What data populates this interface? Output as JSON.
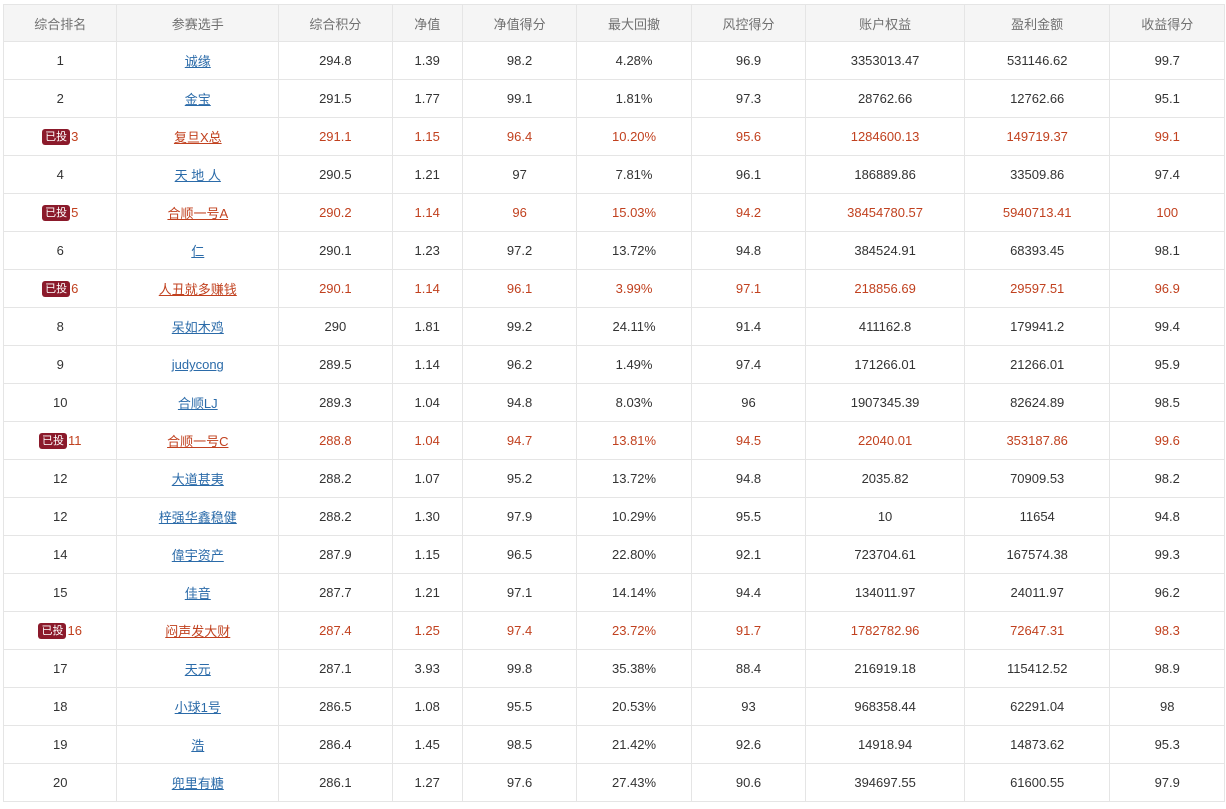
{
  "colors": {
    "header_bg": "#f5f5f5",
    "highlight_text": "#c1411f",
    "link": "#2b6ba9",
    "badge_bg": "#8b1a2b"
  },
  "table": {
    "headers": [
      "综合排名",
      "参赛选手",
      "综合积分",
      "净值",
      "净值得分",
      "最大回撤",
      "风控得分",
      "账户权益",
      "盈利金额",
      "收益得分"
    ],
    "rows": [
      {
        "rank": "1",
        "name": "诚缘",
        "score": "294.8",
        "nav": "1.39",
        "nav_score": "98.2",
        "drawdown": "4.28%",
        "risk_score": "96.9",
        "equity": "3353013.47",
        "profit": "531146.62",
        "return_score": "99.7",
        "badge": "",
        "highlight": false
      },
      {
        "rank": "2",
        "name": "金宝",
        "score": "291.5",
        "nav": "1.77",
        "nav_score": "99.1",
        "drawdown": "1.81%",
        "risk_score": "97.3",
        "equity": "28762.66",
        "profit": "12762.66",
        "return_score": "95.1",
        "badge": "",
        "highlight": false
      },
      {
        "rank": "3",
        "name": "复旦X总",
        "score": "291.1",
        "nav": "1.15",
        "nav_score": "96.4",
        "drawdown": "10.20%",
        "risk_score": "95.6",
        "equity": "1284600.13",
        "profit": "149719.37",
        "return_score": "99.1",
        "badge": "已投",
        "highlight": true
      },
      {
        "rank": "4",
        "name": "天 地 人",
        "score": "290.5",
        "nav": "1.21",
        "nav_score": "97",
        "drawdown": "7.81%",
        "risk_score": "96.1",
        "equity": "186889.86",
        "profit": "33509.86",
        "return_score": "97.4",
        "badge": "",
        "highlight": false
      },
      {
        "rank": "5",
        "name": "合顺一号A",
        "score": "290.2",
        "nav": "1.14",
        "nav_score": "96",
        "drawdown": "15.03%",
        "risk_score": "94.2",
        "equity": "38454780.57",
        "profit": "5940713.41",
        "return_score": "100",
        "badge": "已投",
        "highlight": true
      },
      {
        "rank": "6",
        "name": "仁",
        "score": "290.1",
        "nav": "1.23",
        "nav_score": "97.2",
        "drawdown": "13.72%",
        "risk_score": "94.8",
        "equity": "384524.91",
        "profit": "68393.45",
        "return_score": "98.1",
        "badge": "",
        "highlight": false
      },
      {
        "rank": "6",
        "name": "人丑就多赚钱",
        "score": "290.1",
        "nav": "1.14",
        "nav_score": "96.1",
        "drawdown": "3.99%",
        "risk_score": "97.1",
        "equity": "218856.69",
        "profit": "29597.51",
        "return_score": "96.9",
        "badge": "已投",
        "highlight": true
      },
      {
        "rank": "8",
        "name": "呆如木鸡",
        "score": "290",
        "nav": "1.81",
        "nav_score": "99.2",
        "drawdown": "24.11%",
        "risk_score": "91.4",
        "equity": "411162.8",
        "profit": "179941.2",
        "return_score": "99.4",
        "badge": "",
        "highlight": false
      },
      {
        "rank": "9",
        "name": "judycong",
        "score": "289.5",
        "nav": "1.14",
        "nav_score": "96.2",
        "drawdown": "1.49%",
        "risk_score": "97.4",
        "equity": "171266.01",
        "profit": "21266.01",
        "return_score": "95.9",
        "badge": "",
        "highlight": false
      },
      {
        "rank": "10",
        "name": "合顺LJ",
        "score": "289.3",
        "nav": "1.04",
        "nav_score": "94.8",
        "drawdown": "8.03%",
        "risk_score": "96",
        "equity": "1907345.39",
        "profit": "82624.89",
        "return_score": "98.5",
        "badge": "",
        "highlight": false
      },
      {
        "rank": "11",
        "name": "合顺一号C",
        "score": "288.8",
        "nav": "1.04",
        "nav_score": "94.7",
        "drawdown": "13.81%",
        "risk_score": "94.5",
        "equity": "22040.01",
        "profit": "353187.86",
        "return_score": "99.6",
        "badge": "已投",
        "highlight": true
      },
      {
        "rank": "12",
        "name": "大道甚夷",
        "score": "288.2",
        "nav": "1.07",
        "nav_score": "95.2",
        "drawdown": "13.72%",
        "risk_score": "94.8",
        "equity": "2035.82",
        "profit": "70909.53",
        "return_score": "98.2",
        "badge": "",
        "highlight": false
      },
      {
        "rank": "12",
        "name": "梓强华鑫稳健",
        "score": "288.2",
        "nav": "1.30",
        "nav_score": "97.9",
        "drawdown": "10.29%",
        "risk_score": "95.5",
        "equity": "10",
        "profit": "11654",
        "return_score": "94.8",
        "badge": "",
        "highlight": false
      },
      {
        "rank": "14",
        "name": "偉宇资产",
        "score": "287.9",
        "nav": "1.15",
        "nav_score": "96.5",
        "drawdown": "22.80%",
        "risk_score": "92.1",
        "equity": "723704.61",
        "profit": "167574.38",
        "return_score": "99.3",
        "badge": "",
        "highlight": false
      },
      {
        "rank": "15",
        "name": "佳音",
        "score": "287.7",
        "nav": "1.21",
        "nav_score": "97.1",
        "drawdown": "14.14%",
        "risk_score": "94.4",
        "equity": "134011.97",
        "profit": "24011.97",
        "return_score": "96.2",
        "badge": "",
        "highlight": false
      },
      {
        "rank": "16",
        "name": "闷声发大财",
        "score": "287.4",
        "nav": "1.25",
        "nav_score": "97.4",
        "drawdown": "23.72%",
        "risk_score": "91.7",
        "equity": "1782782.96",
        "profit": "72647.31",
        "return_score": "98.3",
        "badge": "已投",
        "highlight": true
      },
      {
        "rank": "17",
        "name": "天元",
        "score": "287.1",
        "nav": "3.93",
        "nav_score": "99.8",
        "drawdown": "35.38%",
        "risk_score": "88.4",
        "equity": "216919.18",
        "profit": "115412.52",
        "return_score": "98.9",
        "badge": "",
        "highlight": false
      },
      {
        "rank": "18",
        "name": "小球1号",
        "score": "286.5",
        "nav": "1.08",
        "nav_score": "95.5",
        "drawdown": "20.53%",
        "risk_score": "93",
        "equity": "968358.44",
        "profit": "62291.04",
        "return_score": "98",
        "badge": "",
        "highlight": false
      },
      {
        "rank": "19",
        "name": "浩",
        "score": "286.4",
        "nav": "1.45",
        "nav_score": "98.5",
        "drawdown": "21.42%",
        "risk_score": "92.6",
        "equity": "14918.94",
        "profit": "14873.62",
        "return_score": "95.3",
        "badge": "",
        "highlight": false
      },
      {
        "rank": "20",
        "name": "兜里有糖",
        "score": "286.1",
        "nav": "1.27",
        "nav_score": "97.6",
        "drawdown": "27.43%",
        "risk_score": "90.6",
        "equity": "394697.55",
        "profit": "61600.55",
        "return_score": "97.9",
        "badge": "",
        "highlight": false
      }
    ]
  }
}
